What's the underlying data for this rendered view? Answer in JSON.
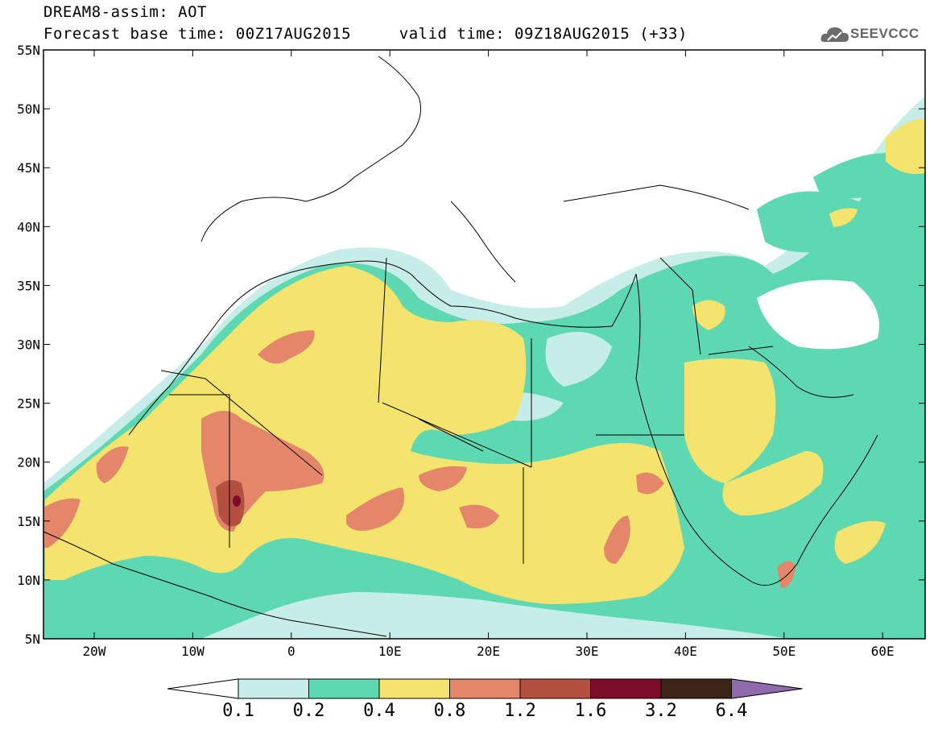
{
  "header": {
    "title": "DREAM8-assim: AOT",
    "base_time_label": "Forecast base time: 00Z17AUG2015",
    "valid_time_label": "valid time: 09Z18AUG2015 (+33)"
  },
  "brand": {
    "name": "SEEVCCC",
    "icon": "cloud-icon"
  },
  "map": {
    "lat_labels": [
      "55N",
      "50N",
      "45N",
      "40N",
      "35N",
      "30N",
      "25N",
      "20N",
      "15N",
      "10N",
      "5N"
    ],
    "lon_labels": [
      "20W",
      "10W",
      "0",
      "10E",
      "20E",
      "30E",
      "40E",
      "50E",
      "60E"
    ],
    "colors": {
      "0.1-0.2": "#c6ede8",
      "0.2-0.4": "#5dd8b0",
      "0.4-0.8": "#f4e36c",
      "0.8-1.2": "#e3866a",
      "1.2-1.6": "#b3503f",
      "1.6-3.2": "#7c0c2a",
      "3.2-6.4": "#3c2418",
      "over-6.4": "#8f6aad"
    }
  },
  "legend": {
    "labels": [
      "0.1",
      "0.2",
      "0.4",
      "0.8",
      "1.2",
      "1.6",
      "3.2",
      "6.4"
    ]
  }
}
